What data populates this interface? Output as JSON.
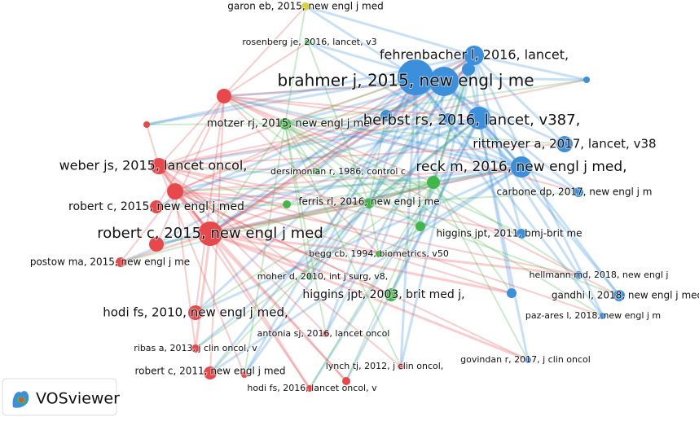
{
  "logo": "VOSviewer",
  "nodes": [
    {
      "label": "brahmer j, 2015, new engl j me",
      "color": "#3b8fdb"
    },
    {
      "label": "fehrenbacher l, 2016, lancet,",
      "color": "#3b8fdb"
    },
    {
      "label": "herbst rs, 2016, lancet, v387,",
      "color": "#3b8fdb"
    },
    {
      "label": "rittmeyer a, 2017, lancet, v38",
      "color": "#3b8fdb"
    },
    {
      "label": "reck m, 2016, new engl j med,",
      "color": "#3b8fdb"
    },
    {
      "label": "carbone dp, 2017, new engl j m",
      "color": "#3b8fdb"
    },
    {
      "label": "higgins jpt, 2011, bmj-brit me",
      "color": "#3b8fdb"
    },
    {
      "label": "hellmann md, 2018, new engl j",
      "color": "#3b8fdb"
    },
    {
      "label": "gandhi l, 2018, new engl j med",
      "color": "#3b8fdb"
    },
    {
      "label": "paz-ares l, 2018, new engl j m",
      "color": "#3b8fdb"
    },
    {
      "label": "govindan r, 2017, j clin oncol",
      "color": "#3b8fdb"
    },
    {
      "label": "motzer rj, 2015, new engl j me",
      "color": "#43b649"
    },
    {
      "label": "dersimonian r, 1986, control c",
      "color": "#43b649"
    },
    {
      "label": "ferris rl, 2016, new engl j me",
      "color": "#43b649"
    },
    {
      "label": "begg cb, 1994, biometrics, v50",
      "color": "#43b649"
    },
    {
      "label": "moher d, 2010, int j surg, v8,",
      "color": "#43b649"
    },
    {
      "label": "higgins jpt, 2003, brit med j,",
      "color": "#43b649"
    },
    {
      "label": "rosenberg je, 2016, lancet, v3",
      "color": "#43b649"
    },
    {
      "label": "garon eb, 2015, new engl j med",
      "color": "#d4d43a"
    },
    {
      "label": "weber js, 2015, lancet oncol,",
      "color": "#e8484b"
    },
    {
      "label": "robert c, 2015, new engl j med",
      "color": "#e8484b"
    },
    {
      "label": "robert c, 2015, new engl j med",
      "color": "#e8484b"
    },
    {
      "label": "postow ma, 2015, new engl j me",
      "color": "#e8484b"
    },
    {
      "label": "hodi fs, 2010, new engl j med,",
      "color": "#e8484b"
    },
    {
      "label": "antonia sj, 2016, lancet oncol",
      "color": "#e8484b"
    },
    {
      "label": "ribas a, 2013, j clin oncol, v",
      "color": "#e8484b"
    },
    {
      "label": "robert c, 2011, new engl j med",
      "color": "#e8484b"
    },
    {
      "label": "lynch tj, 2012, j clin oncol,",
      "color": "#e8484b"
    },
    {
      "label": "hodi fs, 2016, lancet oncol, v",
      "color": "#e8484b"
    }
  ]
}
